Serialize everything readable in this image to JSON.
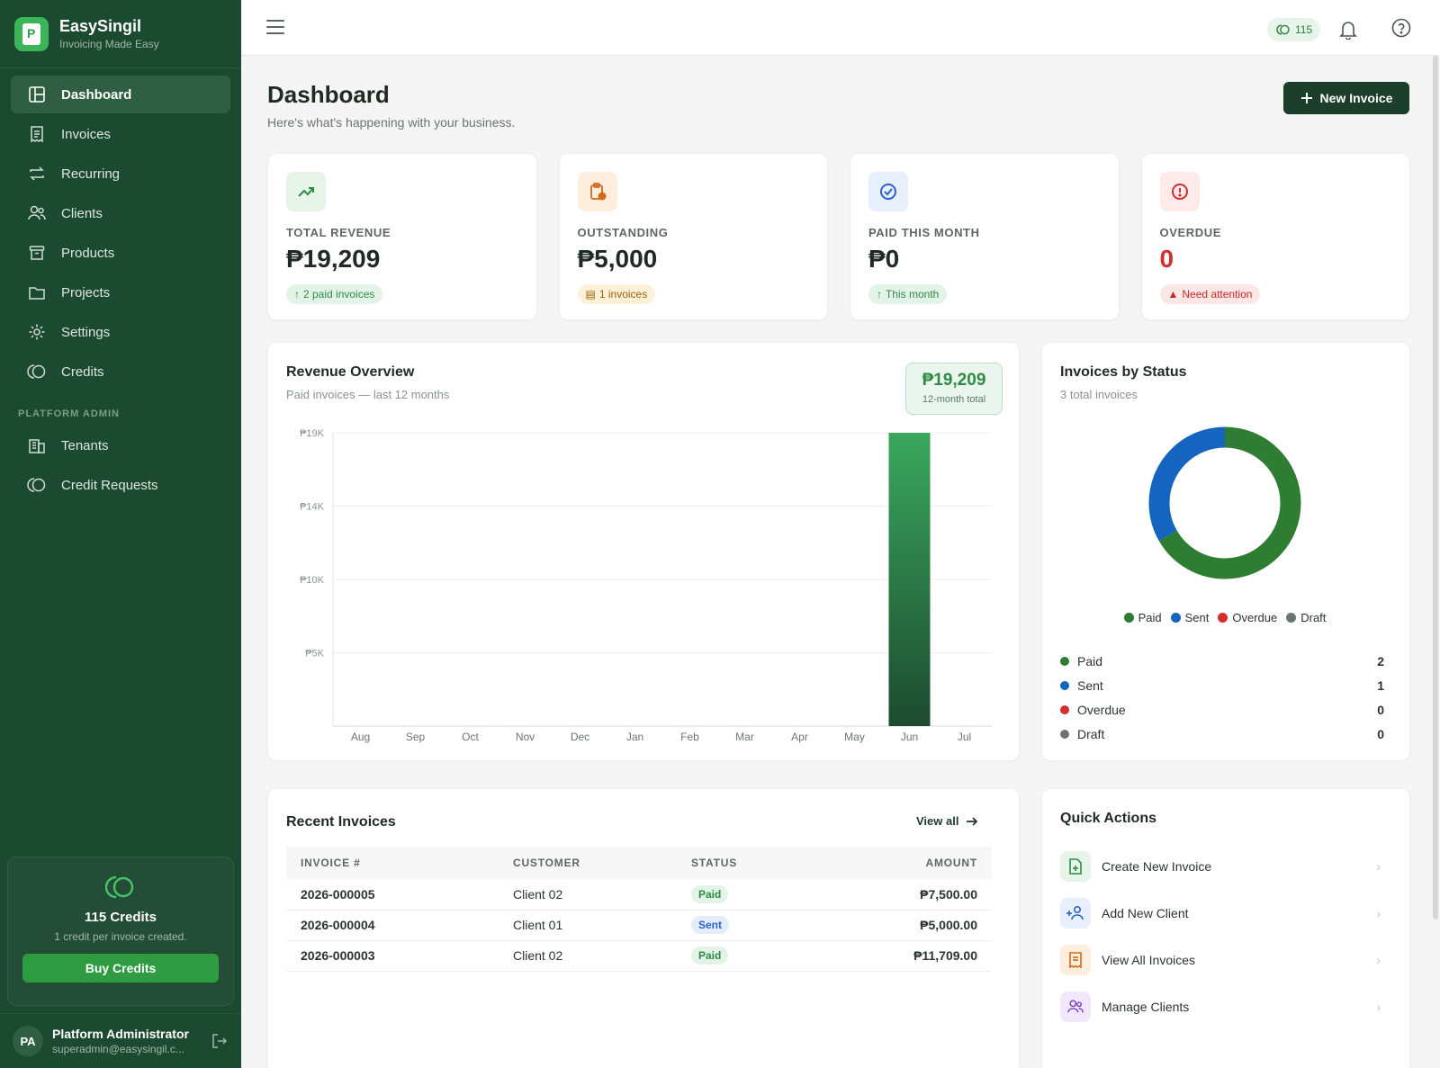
{
  "brand": {
    "name": "EasySingil",
    "tagline": "Invoicing Made Easy"
  },
  "nav": {
    "items": [
      {
        "label": "Dashboard",
        "icon": "layout-icon"
      },
      {
        "label": "Invoices",
        "icon": "receipt-icon"
      },
      {
        "label": "Recurring",
        "icon": "repeat-icon"
      },
      {
        "label": "Clients",
        "icon": "users-icon"
      },
      {
        "label": "Products",
        "icon": "box-icon"
      },
      {
        "label": "Projects",
        "icon": "folder-icon"
      },
      {
        "label": "Settings",
        "icon": "gear-icon"
      },
      {
        "label": "Credits",
        "icon": "coins-icon"
      }
    ],
    "admin_section": "PLATFORM ADMIN",
    "admin_items": [
      {
        "label": "Tenants",
        "icon": "building-icon"
      },
      {
        "label": "Credit Requests",
        "icon": "coins-icon"
      }
    ]
  },
  "credits": {
    "title": "115 Credits",
    "subtitle": "1 credit per invoice created.",
    "buy_label": "Buy Credits"
  },
  "user": {
    "initials": "PA",
    "name": "Platform Administrator",
    "email": "superadmin@easysingil.c..."
  },
  "topbar": {
    "credit_count": "115"
  },
  "page": {
    "title": "Dashboard",
    "subtitle": "Here's what's happening with your business.",
    "new_invoice_label": "New Invoice"
  },
  "stats": [
    {
      "label": "TOTAL REVENUE",
      "value": "₱19,209",
      "badge": "2 paid invoices",
      "badge_prefix": "↑",
      "color": "#2e8b45"
    },
    {
      "label": "OUTSTANDING",
      "value": "₱5,000",
      "badge": "1 invoices",
      "badge_prefix": "▤",
      "color": "#b9731b"
    },
    {
      "label": "PAID THIS MONTH",
      "value": "₱0",
      "badge": "This month",
      "badge_prefix": "↑",
      "color": "#2e8b45"
    },
    {
      "label": "OVERDUE",
      "value": "0",
      "badge": "Need attention",
      "badge_prefix": "▲",
      "color": "#d32f2f"
    }
  ],
  "revenue": {
    "title": "Revenue Overview",
    "subtitle": "Paid invoices — last 12 months",
    "total_value": "₱19,209",
    "total_label": "12-month total"
  },
  "chart_data": {
    "type": "bar",
    "categories": [
      "Aug",
      "Sep",
      "Oct",
      "Nov",
      "Dec",
      "Jan",
      "Feb",
      "Mar",
      "Apr",
      "May",
      "Jun",
      "Jul"
    ],
    "values": [
      0,
      0,
      0,
      0,
      0,
      0,
      0,
      0,
      0,
      0,
      19209,
      0
    ],
    "yticks": [
      {
        "value": 19209,
        "label": "₱19K"
      },
      {
        "value": 14407,
        "label": "₱14K"
      },
      {
        "value": 9605,
        "label": "₱10K"
      },
      {
        "value": 4802,
        "label": "₱5K"
      }
    ],
    "ylim": [
      0,
      19209
    ],
    "grid": true,
    "bar_color": "#2f9b55"
  },
  "status": {
    "title": "Invoices by Status",
    "subtitle": "3 total invoices",
    "items": [
      {
        "label": "Paid",
        "count": "2",
        "color": "#2e7d32"
      },
      {
        "label": "Sent",
        "count": "1",
        "color": "#1565c0"
      },
      {
        "label": "Overdue",
        "count": "0",
        "color": "#d32f2f"
      },
      {
        "label": "Draft",
        "count": "0",
        "color": "#6b7570"
      }
    ]
  },
  "recent": {
    "title": "Recent Invoices",
    "view_all": "View all",
    "columns": [
      "INVOICE #",
      "CUSTOMER",
      "STATUS",
      "AMOUNT"
    ],
    "rows": [
      {
        "number": "2026-000005",
        "customer": "Client 02",
        "status": "Paid",
        "amount": "₱7,500.00"
      },
      {
        "number": "2026-000004",
        "customer": "Client 01",
        "status": "Sent",
        "amount": "₱5,000.00"
      },
      {
        "number": "2026-000003",
        "customer": "Client 02",
        "status": "Paid",
        "amount": "₱11,709.00"
      }
    ]
  },
  "quick_actions": {
    "title": "Quick Actions",
    "items": [
      {
        "label": "Create New Invoice",
        "icon": "file-plus-icon"
      },
      {
        "label": "Add New Client",
        "icon": "user-plus-icon"
      },
      {
        "label": "View All Invoices",
        "icon": "receipt-icon"
      },
      {
        "label": "Manage Clients",
        "icon": "users-icon"
      }
    ]
  }
}
